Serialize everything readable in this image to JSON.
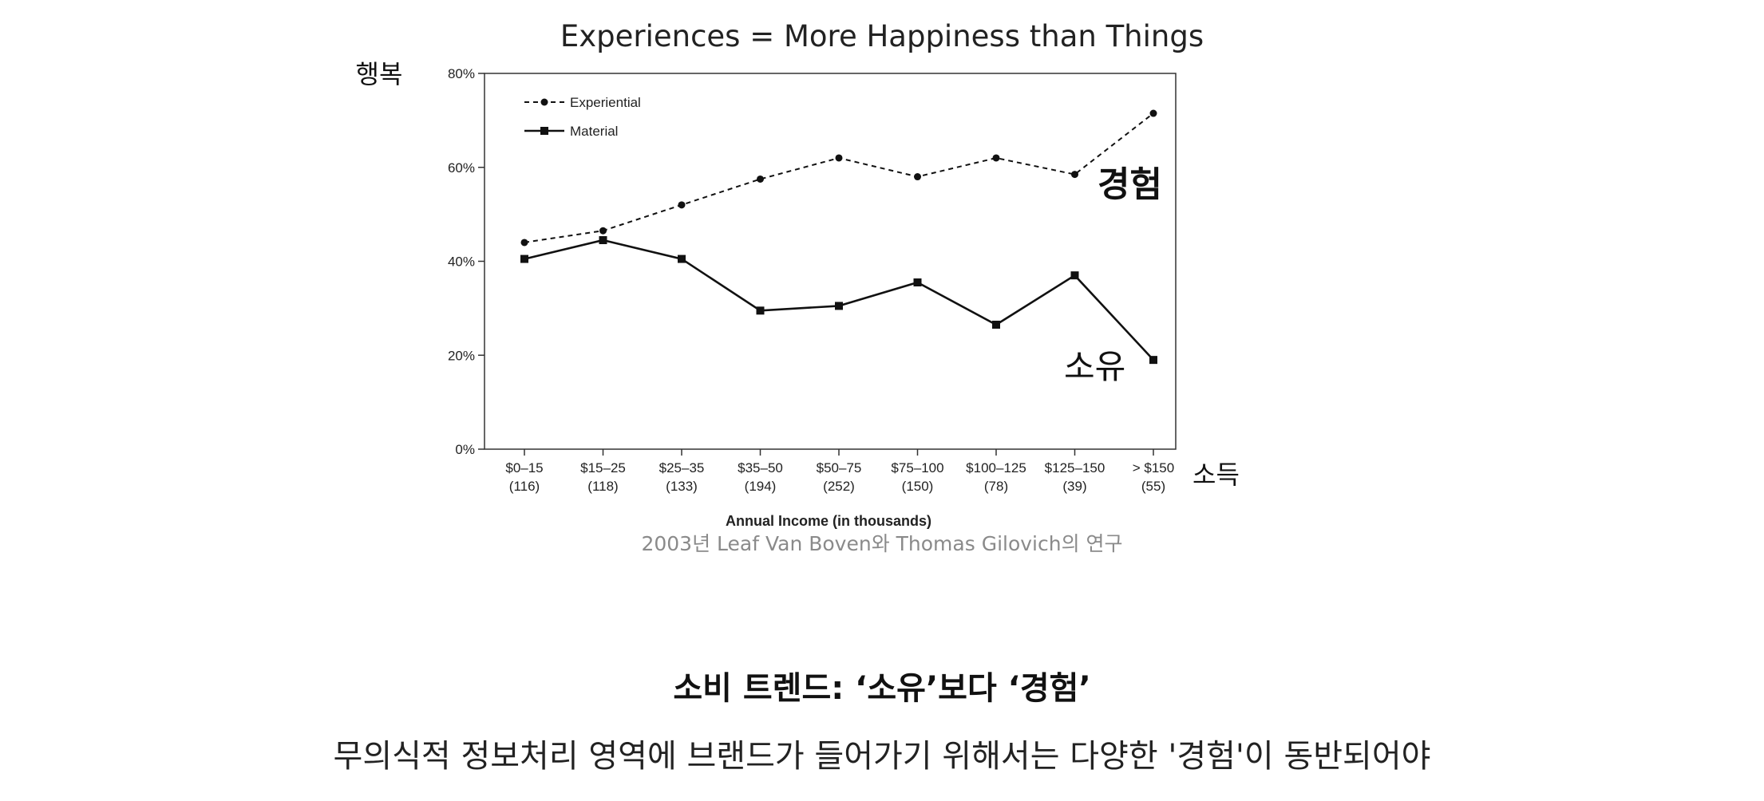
{
  "chart_data": {
    "type": "line",
    "title": "Experiences = More Happiness than Things",
    "ylabel": "행복",
    "xlabel": "Annual Income (in thousands)",
    "x_axis_side_label": "소득",
    "categories": [
      {
        "range": "$0–15",
        "n": "(116)"
      },
      {
        "range": "$15–25",
        "n": "(118)"
      },
      {
        "range": "$25–35",
        "n": "(133)"
      },
      {
        "range": "$35–50",
        "n": "(194)"
      },
      {
        "range": "$50–75",
        "n": "(252)"
      },
      {
        "range": "$75–100",
        "n": "(150)"
      },
      {
        "range": "$100–125",
        "n": "(78)"
      },
      {
        "range": "$125–150",
        "n": "(39)"
      },
      {
        "range": "> $150",
        "n": "(55)"
      }
    ],
    "y_ticks": [
      "0%",
      "20%",
      "40%",
      "60%",
      "80%"
    ],
    "ylim": [
      0,
      80
    ],
    "series": [
      {
        "name": "Experiential",
        "style": "dotted",
        "marker": "circle",
        "annotation": "경험",
        "values": [
          44,
          46.5,
          52,
          57.5,
          62,
          58,
          62,
          58.5,
          71.5
        ]
      },
      {
        "name": "Material",
        "style": "solid",
        "marker": "square",
        "annotation": "소유",
        "values": [
          40.5,
          44.5,
          40.5,
          29.5,
          30.5,
          35.5,
          26.5,
          37,
          19
        ]
      }
    ],
    "legend_position": "top-left",
    "grid": false
  },
  "source_note": "2003년 Leaf Van Boven와 Thomas Gilovich의 연구",
  "headline": "소비 트렌드: ‘소유’보다 ‘경험’",
  "subline": "무의식적 정보처리 영역에 브랜드가 들어가기 위해서는 다양한 '경험'이 동반되어야",
  "colors": {
    "line": "#111111",
    "source": "#8a8a8a"
  }
}
